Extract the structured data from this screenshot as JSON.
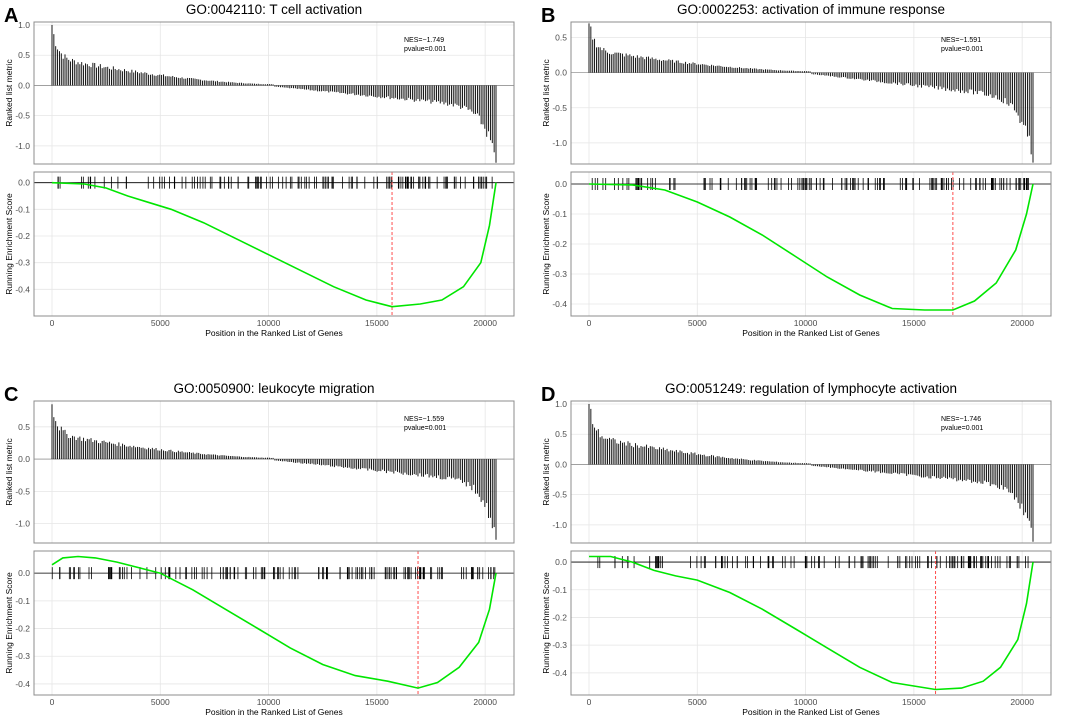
{
  "figure": {
    "x_axis_label": "Position in the Ranked List of Genes",
    "metric_axis_label": "Ranked list metric",
    "es_axis_label": "Running Enrichment Score",
    "colors": {
      "es_curve": "#00e600",
      "peak_line": "#ff4d4d",
      "bars": "#000000",
      "grid": "#e6e6e6",
      "frame": "#8c8c8c"
    }
  },
  "chart_data": [
    {
      "type": "line",
      "panel_label": "A",
      "title": "GO:0042110: T cell activation",
      "nes_label": "NES=−1.749",
      "pvalue_label": "pvalue=0.001",
      "x_range": [
        0,
        20500
      ],
      "x_ticks": [
        "0",
        "5000",
        "10000",
        "15000",
        "20000"
      ],
      "x_tick_values": [
        0,
        5000,
        10000,
        15000,
        20000
      ],
      "metric": {
        "ylim": [
          -1.3,
          1.05
        ],
        "ticks": [
          "1.0",
          "0.5",
          "0.0",
          "-0.5",
          "-1.0"
        ],
        "tick_values": [
          1.0,
          0.5,
          0.0,
          -0.5,
          -1.0
        ],
        "start": 1.0,
        "end": -1.28
      },
      "es": {
        "ylim": [
          -0.5,
          0.04
        ],
        "ticks": [
          "0.0",
          "-0.1",
          "-0.2",
          "-0.3",
          "-0.4"
        ],
        "tick_values": [
          0.0,
          -0.1,
          -0.2,
          -0.3,
          -0.4
        ],
        "curve": [
          [
            0,
            0.0
          ],
          [
            1500,
            -0.005
          ],
          [
            2500,
            -0.02
          ],
          [
            3500,
            -0.05
          ],
          [
            4500,
            -0.075
          ],
          [
            5500,
            -0.1
          ],
          [
            7000,
            -0.15
          ],
          [
            8500,
            -0.21
          ],
          [
            10000,
            -0.27
          ],
          [
            11500,
            -0.33
          ],
          [
            13000,
            -0.39
          ],
          [
            14500,
            -0.44
          ],
          [
            15700,
            -0.465
          ],
          [
            17000,
            -0.455
          ],
          [
            18000,
            -0.44
          ],
          [
            19000,
            -0.39
          ],
          [
            19800,
            -0.3
          ],
          [
            20200,
            -0.16
          ],
          [
            20500,
            0.0
          ]
        ],
        "peak_x": 15700
      },
      "hit_density": [
        0.35,
        0.85,
        0.9,
        1.4
      ]
    },
    {
      "type": "line",
      "panel_label": "B",
      "title": "GO:0002253: activation of immune response",
      "nes_label": "NES=−1.591",
      "pvalue_label": "pvalue=0.001",
      "x_range": [
        0,
        20500
      ],
      "x_ticks": [
        "0",
        "5000",
        "10000",
        "15000",
        "20000"
      ],
      "x_tick_values": [
        0,
        5000,
        10000,
        15000,
        20000
      ],
      "metric": {
        "ylim": [
          -1.3,
          0.72
        ],
        "ticks": [
          "0.5",
          "0.0",
          "-0.5",
          "-1.0"
        ],
        "tick_values": [
          0.5,
          0.0,
          -0.5,
          -1.0
        ],
        "start": 0.7,
        "end": -1.28
      },
      "es": {
        "ylim": [
          -0.44,
          0.04
        ],
        "ticks": [
          "0.0",
          "-0.1",
          "-0.2",
          "-0.3",
          "-0.4"
        ],
        "tick_values": [
          0.0,
          -0.1,
          -0.2,
          -0.3,
          -0.4
        ],
        "curve": [
          [
            0,
            0.0
          ],
          [
            2000,
            -0.003
          ],
          [
            3500,
            -0.02
          ],
          [
            5000,
            -0.06
          ],
          [
            6500,
            -0.11
          ],
          [
            8000,
            -0.17
          ],
          [
            9500,
            -0.24
          ],
          [
            11000,
            -0.31
          ],
          [
            12500,
            -0.37
          ],
          [
            14000,
            -0.415
          ],
          [
            15500,
            -0.42
          ],
          [
            16800,
            -0.42
          ],
          [
            17800,
            -0.39
          ],
          [
            18800,
            -0.33
          ],
          [
            19700,
            -0.22
          ],
          [
            20200,
            -0.1
          ],
          [
            20500,
            0.0
          ]
        ],
        "peak_x": 16800
      },
      "hit_density": [
        0.5,
        0.9,
        1.0,
        1.3
      ]
    },
    {
      "type": "line",
      "panel_label": "C",
      "title": "GO:0050900: leukocyte migration",
      "nes_label": "NES=−1.559",
      "pvalue_label": "pvalue=0.001",
      "x_range": [
        0,
        20500
      ],
      "x_ticks": [
        "0",
        "5000",
        "10000",
        "15000",
        "20000"
      ],
      "x_tick_values": [
        0,
        5000,
        10000,
        15000,
        20000
      ],
      "metric": {
        "ylim": [
          -1.3,
          0.9
        ],
        "ticks": [
          "0.5",
          "0.0",
          "-0.5",
          "-1.0"
        ],
        "tick_values": [
          0.5,
          0.0,
          -0.5,
          -1.0
        ],
        "start": 0.85,
        "end": -1.25
      },
      "es": {
        "ylim": [
          -0.44,
          0.08
        ],
        "ticks": [
          "0.0",
          "-0.1",
          "-0.2",
          "-0.3",
          "-0.4"
        ],
        "tick_values": [
          0.0,
          -0.1,
          -0.2,
          -0.3,
          -0.4
        ],
        "curve": [
          [
            0,
            0.03
          ],
          [
            500,
            0.055
          ],
          [
            1200,
            0.06
          ],
          [
            2000,
            0.055
          ],
          [
            3000,
            0.04
          ],
          [
            4000,
            0.02
          ],
          [
            5000,
            0.0
          ],
          [
            6500,
            -0.06
          ],
          [
            8000,
            -0.13
          ],
          [
            9500,
            -0.2
          ],
          [
            11000,
            -0.27
          ],
          [
            12500,
            -0.33
          ],
          [
            14000,
            -0.37
          ],
          [
            15500,
            -0.39
          ],
          [
            16900,
            -0.415
          ],
          [
            17800,
            -0.395
          ],
          [
            18800,
            -0.34
          ],
          [
            19700,
            -0.25
          ],
          [
            20200,
            -0.13
          ],
          [
            20500,
            0.0
          ]
        ],
        "peak_x": 16900
      },
      "hit_density": [
        0.6,
        1.0,
        1.0,
        1.2
      ]
    },
    {
      "type": "line",
      "panel_label": "D",
      "title": "GO:0051249: regulation of lymphocyte activation",
      "nes_label": "NES=−1.746",
      "pvalue_label": "pvalue=0.001",
      "x_range": [
        0,
        20500
      ],
      "x_ticks": [
        "0",
        "5000",
        "10000",
        "15000",
        "20000"
      ],
      "x_tick_values": [
        0,
        5000,
        10000,
        15000,
        20000
      ],
      "metric": {
        "ylim": [
          -1.3,
          1.05
        ],
        "ticks": [
          "1.0",
          "0.5",
          "0.0",
          "-0.5",
          "-1.0"
        ],
        "tick_values": [
          1.0,
          0.5,
          0.0,
          -0.5,
          -1.0
        ],
        "start": 1.0,
        "end": -1.28
      },
      "es": {
        "ylim": [
          -0.48,
          0.04
        ],
        "ticks": [
          "0.0",
          "-0.1",
          "-0.2",
          "-0.3",
          "-0.4"
        ],
        "tick_values": [
          0.0,
          -0.1,
          -0.2,
          -0.3,
          -0.4
        ],
        "curve": [
          [
            0,
            0.02
          ],
          [
            1000,
            0.02
          ],
          [
            2000,
            0.0
          ],
          [
            3000,
            -0.03
          ],
          [
            4000,
            -0.05
          ],
          [
            5000,
            -0.065
          ],
          [
            6500,
            -0.11
          ],
          [
            8000,
            -0.17
          ],
          [
            9500,
            -0.24
          ],
          [
            11000,
            -0.31
          ],
          [
            12500,
            -0.38
          ],
          [
            14000,
            -0.435
          ],
          [
            16000,
            -0.46
          ],
          [
            17200,
            -0.455
          ],
          [
            18200,
            -0.43
          ],
          [
            19000,
            -0.38
          ],
          [
            19800,
            -0.28
          ],
          [
            20200,
            -0.15
          ],
          [
            20500,
            0.0
          ]
        ],
        "peak_x": 16000
      },
      "hit_density": [
        0.5,
        0.9,
        0.9,
        1.4
      ]
    }
  ]
}
